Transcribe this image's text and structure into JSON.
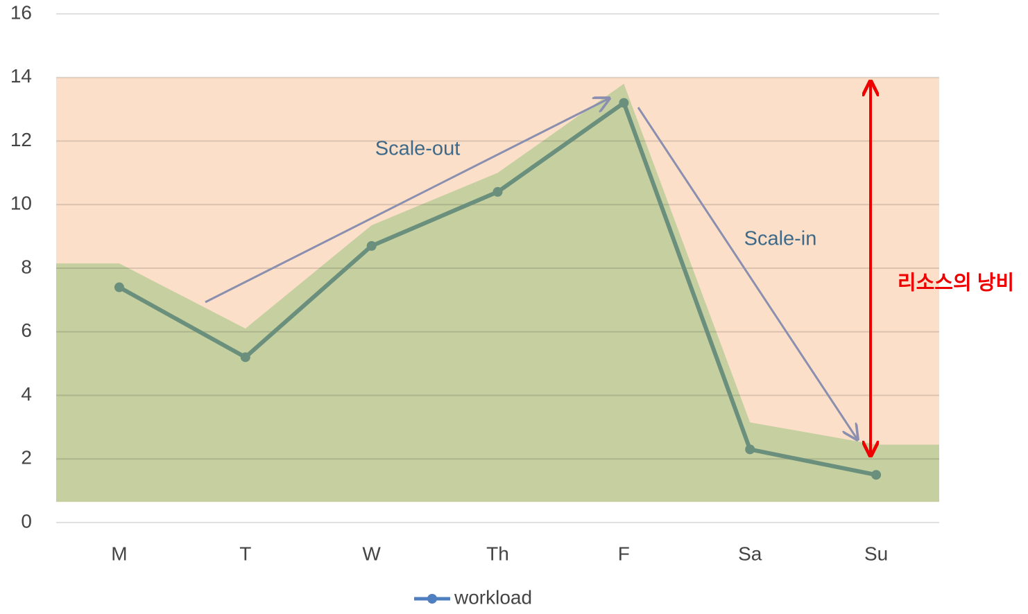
{
  "chart_data": {
    "type": "line",
    "categories": [
      "M",
      "T",
      "W",
      "Th",
      "F",
      "Sa",
      "Su"
    ],
    "series": [
      {
        "name": "workload",
        "color": "#6a8f7c",
        "values": [
          7.4,
          5.2,
          8.7,
          10.4,
          13.2,
          2.3,
          1.5
        ]
      }
    ],
    "areas": [
      {
        "color": "#c5cfa0",
        "values": [
          8.15,
          6.1,
          9.35,
          11.0,
          13.8,
          3.15,
          2.45
        ]
      }
    ],
    "band": {
      "from": 0.65,
      "to": 14,
      "color": "#fbdfc8"
    },
    "ylim": [
      0,
      16
    ],
    "yticks": [
      0,
      2,
      4,
      6,
      8,
      10,
      12,
      14,
      16
    ],
    "grid": true,
    "legend": "bottom",
    "annotations": [
      "Scale-out",
      "Scale-in",
      "리소스의 낭비"
    ]
  }
}
